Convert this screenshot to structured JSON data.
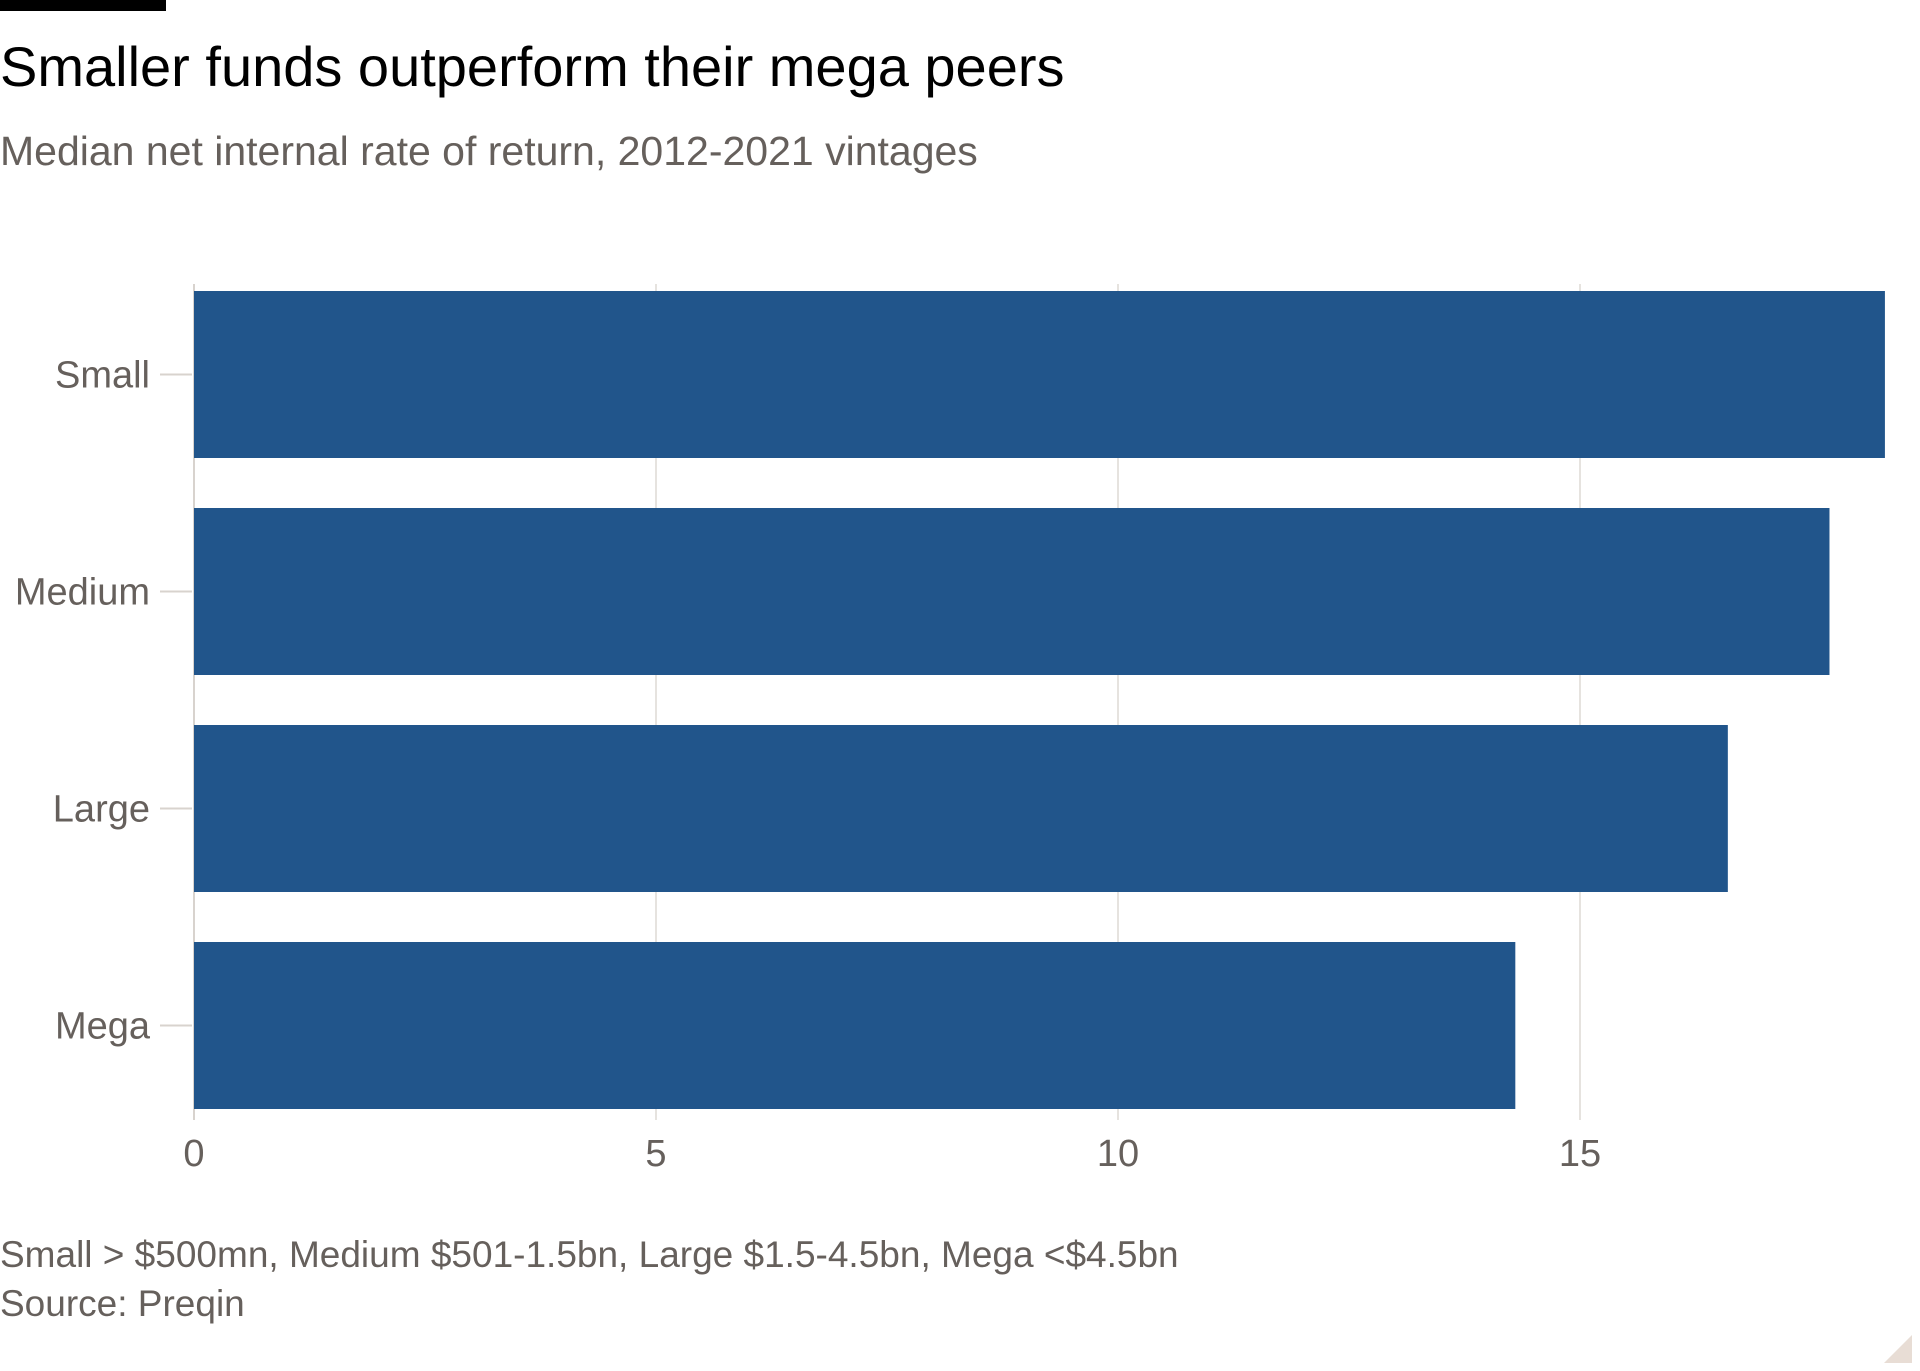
{
  "title": "Smaller funds outperform their mega peers",
  "subtitle": "Median net internal rate of return, 2012-2021 vintages",
  "footnote": "Small > $500mn, Medium $501-1.5bn, Large $1.5-4.5bn, Mega <$4.5bn",
  "source": "Source: Preqin",
  "colors": {
    "bar": "#21558b",
    "grid": "#e6e3df",
    "axis": "#66605c"
  },
  "chart_data": {
    "type": "bar",
    "orientation": "horizontal",
    "categories": [
      "Small",
      "Medium",
      "Large",
      "Mega"
    ],
    "values": [
      18.3,
      17.7,
      16.6,
      14.3
    ],
    "xticks": [
      0,
      5,
      10,
      15
    ],
    "xlim": [
      0,
      18.3
    ],
    "grid": true
  }
}
